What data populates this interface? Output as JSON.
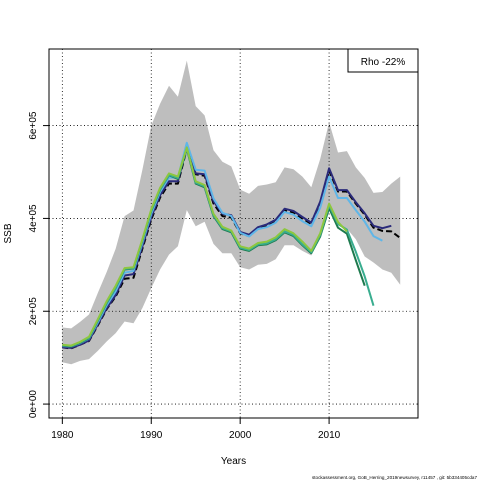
{
  "chart_data": {
    "type": "line",
    "title": "",
    "xlabel": "Years",
    "ylabel": "SSB",
    "xlim": [
      1978.5,
      2020.0
    ],
    "ylim": [
      -30000,
      765000
    ],
    "x_ticks": [
      1980,
      1990,
      2000,
      2010
    ],
    "x_tick_labels": [
      "1980",
      "1990",
      "2000",
      "2010"
    ],
    "y_ticks": [
      0,
      200000,
      400000,
      600000
    ],
    "y_tick_labels": [
      "0e+00",
      "2e+05",
      "4e+05",
      "6e+05"
    ],
    "grid": true,
    "grid_style": "dotted",
    "legend": "none",
    "annotation": "Rho -22%",
    "annotation_position": "top-right",
    "credit": "stockassessment.org, GoB_Herring_2019newsurvey, r11457 , git: 5b334405cda7",
    "band": {
      "x": [
        1980,
        1981,
        1982,
        1983,
        1984,
        1985,
        1986,
        1987,
        1988,
        1989,
        1990,
        1991,
        1992,
        1993,
        1994,
        1995,
        1996,
        1997,
        1998,
        1999,
        2000,
        2001,
        2002,
        2003,
        2004,
        2005,
        2006,
        2007,
        2008,
        2009,
        2010,
        2011,
        2012,
        2013,
        2014,
        2015,
        2016,
        2017,
        2018
      ],
      "upper": [
        165000,
        163000,
        177000,
        193000,
        240000,
        285000,
        335000,
        405000,
        417000,
        505000,
        600000,
        647000,
        686000,
        662000,
        740000,
        642000,
        622000,
        547000,
        522000,
        512000,
        462000,
        453000,
        470000,
        473000,
        478000,
        510000,
        506000,
        490000,
        467000,
        528000,
        607000,
        542000,
        545000,
        510000,
        487000,
        455000,
        457000,
        475000,
        490000
      ],
      "lower": [
        90000,
        86000,
        93000,
        97000,
        115000,
        135000,
        153000,
        178000,
        174000,
        207000,
        250000,
        290000,
        322000,
        340000,
        418000,
        383000,
        393000,
        345000,
        325000,
        325000,
        295000,
        290000,
        300000,
        302000,
        312000,
        342000,
        342000,
        330000,
        320000,
        370000,
        418000,
        390000,
        378000,
        355000,
        318000,
        305000,
        290000,
        283000,
        257000
      ]
    },
    "series": [
      {
        "color": "#000000",
        "dash": "6,3",
        "x": [
          1980,
          1981,
          1982,
          1983,
          1984,
          1985,
          1986,
          1987,
          1988,
          1989,
          1990,
          1991,
          1992,
          1993,
          1994,
          1995,
          1996,
          1997,
          1998,
          1999,
          2000,
          2001,
          2002,
          2003,
          2004,
          2005,
          2006,
          2007,
          2008,
          2009,
          2010,
          2011,
          2012,
          2013,
          2014,
          2015,
          2016,
          2017,
          2018
        ],
        "y": [
          122000,
          120000,
          128000,
          136000,
          170000,
          205000,
          232000,
          270000,
          272000,
          335000,
          398000,
          445000,
          475000,
          475000,
          550000,
          495000,
          492000,
          432000,
          405000,
          402000,
          368000,
          362000,
          378000,
          383000,
          393000,
          418000,
          413000,
          400000,
          388000,
          432000,
          503000,
          458000,
          458000,
          432000,
          408000,
          380000,
          373000,
          372000,
          358000
        ]
      },
      {
        "color": "#2a2a7a",
        "dash": "",
        "x": [
          1980,
          1981,
          1982,
          1983,
          1984,
          1985,
          1986,
          1987,
          1988,
          1989,
          1990,
          1991,
          1992,
          1993,
          1994,
          1995,
          1996,
          1997,
          1998,
          1999,
          2000,
          2001,
          2002,
          2003,
          2004,
          2005,
          2006,
          2007,
          2008,
          2009,
          2010,
          2011,
          2012,
          2013,
          2014,
          2015,
          2016,
          2017
        ],
        "y": [
          122000,
          121000,
          128000,
          137000,
          172000,
          207000,
          235000,
          277000,
          280000,
          340000,
          403000,
          450000,
          480000,
          480000,
          555000,
          497000,
          495000,
          437000,
          410000,
          407000,
          371000,
          365000,
          381000,
          387000,
          397000,
          421000,
          416000,
          403000,
          391000,
          436000,
          508000,
          461000,
          461000,
          435000,
          411000,
          384000,
          379000,
          384000
        ]
      },
      {
        "color": "#5fb6e8",
        "dash": "",
        "x": [
          1980,
          1981,
          1982,
          1983,
          1984,
          1985,
          1986,
          1987,
          1988,
          1989,
          1990,
          1991,
          1992,
          1993,
          1994,
          1995,
          1996,
          1997,
          1998,
          1999,
          2000,
          2001,
          2002,
          2003,
          2004,
          2005,
          2006,
          2007,
          2008,
          2009,
          2010,
          2011,
          2012,
          2013,
          2014,
          2015,
          2016
        ],
        "y": [
          125000,
          124000,
          131000,
          141000,
          176000,
          213000,
          243000,
          283000,
          287000,
          347000,
          410000,
          457000,
          488000,
          488000,
          563000,
          505000,
          503000,
          443000,
          412000,
          405000,
          369000,
          361000,
          377000,
          381000,
          391000,
          414000,
          408000,
          394000,
          383000,
          423000,
          490000,
          444000,
          444000,
          418000,
          393000,
          362000,
          352000
        ]
      },
      {
        "color": "#1e7a4e",
        "dash": "",
        "x": [
          1980,
          1981,
          1982,
          1983,
          1984,
          1985,
          1986,
          1987,
          1988,
          1989,
          1990,
          1991,
          1992,
          1993,
          1994,
          1995,
          1996,
          1997,
          1998,
          1999,
          2000,
          2001,
          2002,
          2003,
          2004,
          2005,
          2006,
          2007,
          2008,
          2009,
          2010,
          2011,
          2012,
          2013,
          2014
        ],
        "y": [
          126000,
          124000,
          132000,
          142000,
          180000,
          218000,
          250000,
          290000,
          292000,
          352000,
          416000,
          462000,
          493000,
          485000,
          550000,
          475000,
          467000,
          405000,
          377000,
          370000,
          335000,
          330000,
          342000,
          344000,
          353000,
          370000,
          362000,
          342000,
          325000,
          361000,
          422000,
          380000,
          367000,
          310000,
          255000
        ]
      },
      {
        "color": "#39ad8f",
        "dash": "",
        "x": [
          1980,
          1981,
          1982,
          1983,
          1984,
          1985,
          1986,
          1987,
          1988,
          1989,
          1990,
          1991,
          1992,
          1993,
          1994,
          1995,
          1996,
          1997,
          1998,
          1999,
          2000,
          2001,
          2002,
          2003,
          2004,
          2005,
          2006,
          2007,
          2008,
          2009,
          2010,
          2011,
          2012,
          2013,
          2014,
          2015
        ],
        "y": [
          127000,
          125000,
          133000,
          143000,
          181000,
          219000,
          251000,
          291000,
          293000,
          353000,
          417000,
          463000,
          494000,
          487000,
          552000,
          477000,
          469000,
          407000,
          379000,
          372000,
          337000,
          332000,
          344000,
          346000,
          355000,
          372000,
          364000,
          344000,
          327000,
          364000,
          428000,
          388000,
          376000,
          328000,
          275000,
          212000
        ]
      },
      {
        "color": "#8dc73f",
        "dash": "",
        "x": [
          1980,
          1981,
          1982,
          1983,
          1984,
          1985,
          1986,
          1987,
          1988,
          1989,
          1990,
          1991,
          1992,
          1993,
          1994,
          1995,
          1996,
          1997,
          1998,
          1999,
          2000,
          2001,
          2002,
          2003,
          2004,
          2005,
          2006,
          2007,
          2008,
          2009,
          2010,
          2011,
          2012
        ],
        "y": [
          128000,
          126000,
          134000,
          145000,
          183000,
          222000,
          255000,
          293000,
          295000,
          355000,
          420000,
          466000,
          497000,
          490000,
          553000,
          480000,
          472000,
          410000,
          382000,
          374000,
          340000,
          335000,
          347000,
          350000,
          359000,
          377000,
          368000,
          350000,
          330000,
          368000,
          432000,
          392000,
          372000
        ]
      }
    ]
  }
}
